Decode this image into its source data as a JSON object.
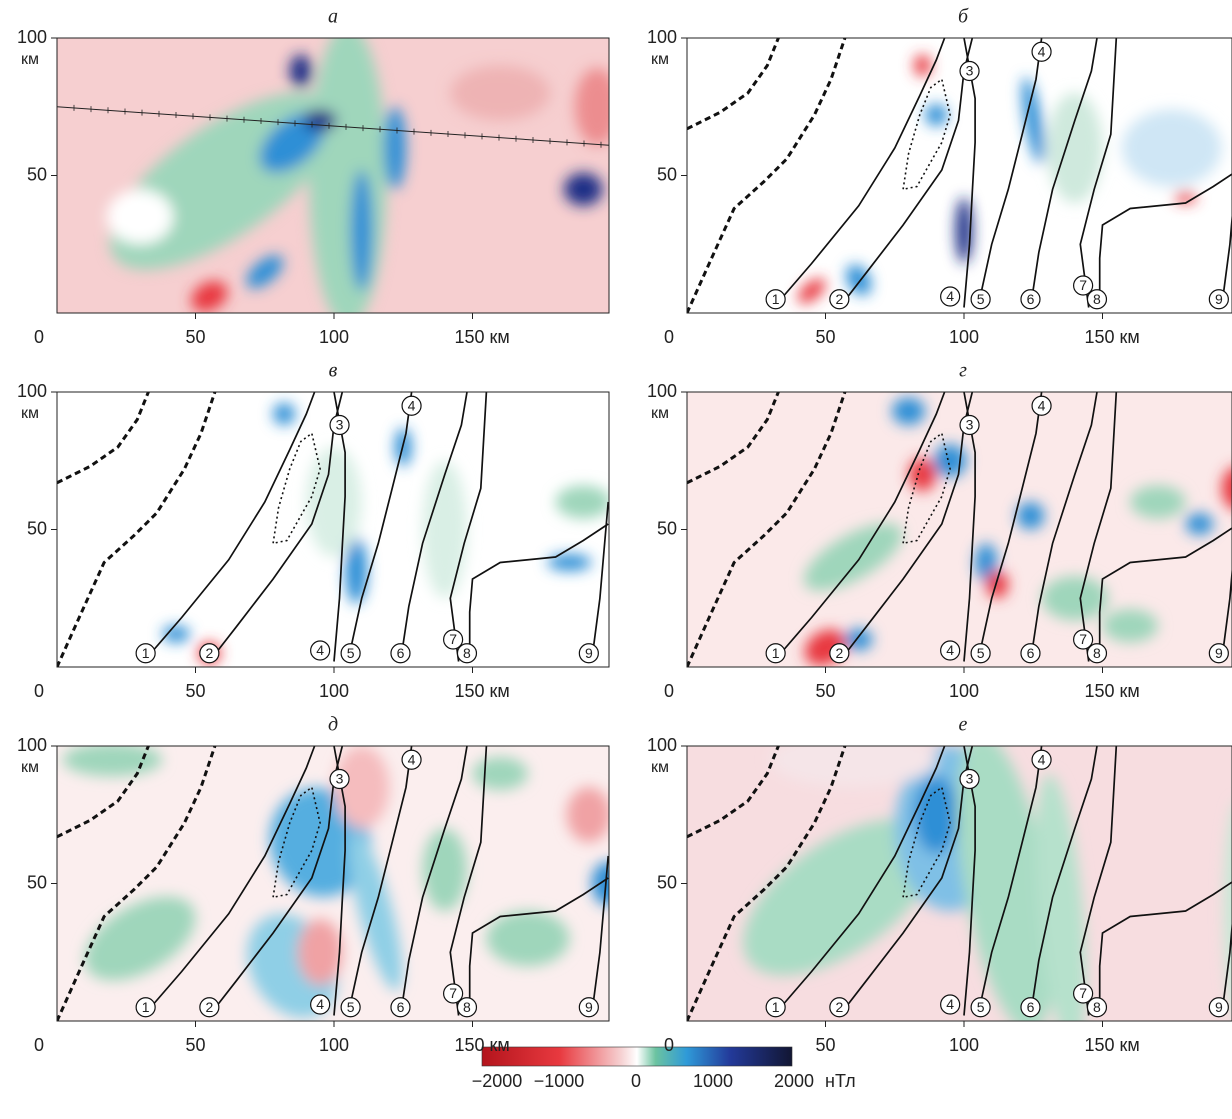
{
  "panels": [
    {
      "title": "а",
      "yticks": [
        "100",
        "50"
      ],
      "y_unit": "км",
      "origin": "0",
      "xticks": [
        "50",
        "100",
        "150 км"
      ],
      "markers": []
    },
    {
      "title": "б",
      "yticks": [
        "100",
        "50"
      ],
      "y_unit": "км",
      "origin": "0",
      "xticks": [
        "50",
        "100",
        "150 км"
      ],
      "markers": [
        "1",
        "2",
        "3",
        "4",
        "4",
        "5",
        "6",
        "7",
        "8",
        "9"
      ]
    },
    {
      "title": "в",
      "yticks": [
        "100",
        "50"
      ],
      "y_unit": "км",
      "origin": "0",
      "xticks": [
        "50",
        "100",
        "150 км"
      ],
      "markers": [
        "1",
        "2",
        "3",
        "4",
        "4",
        "5",
        "6",
        "7",
        "8",
        "9"
      ]
    },
    {
      "title": "г",
      "yticks": [
        "100",
        "50"
      ],
      "y_unit": "км",
      "origin": "0",
      "xticks": [
        "50",
        "100",
        "150 км"
      ],
      "markers": [
        "1",
        "2",
        "3",
        "4",
        "4",
        "5",
        "6",
        "7",
        "8",
        "9"
      ]
    },
    {
      "title": "д",
      "yticks": [
        "100",
        "50"
      ],
      "y_unit": "км",
      "origin": "0",
      "xticks": [
        "50",
        "100",
        "150 км"
      ],
      "markers": [
        "1",
        "2",
        "3",
        "4",
        "4",
        "5",
        "6",
        "7",
        "8",
        "9"
      ]
    },
    {
      "title": "е",
      "yticks": [
        "100",
        "50"
      ],
      "y_unit": "км",
      "origin": "0",
      "xticks": [
        "50",
        "100",
        "150 км"
      ],
      "markers": [
        "1",
        "2",
        "3",
        "4",
        "4",
        "5",
        "6",
        "7",
        "8",
        "9"
      ]
    }
  ],
  "colorbar": {
    "ticks": [
      "−2000",
      "−1000",
      "0",
      "1000",
      "2000"
    ],
    "unit": "нТл"
  }
}
